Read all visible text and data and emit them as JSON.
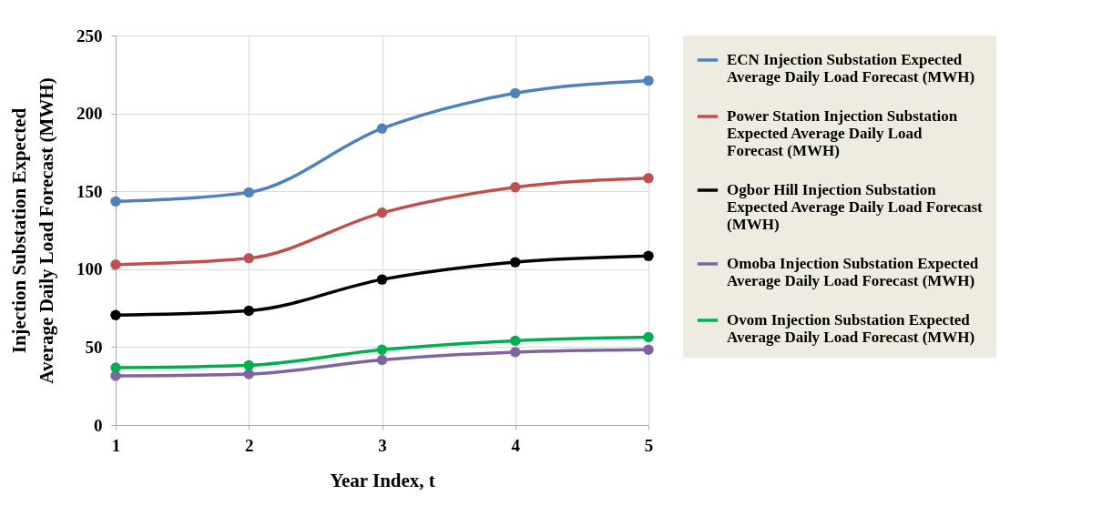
{
  "chart_data": {
    "type": "line",
    "xlabel": "Year Index, t",
    "ylabel": "Injection Substation Expected Average Daily Load Forecast (MWH)",
    "x": [
      1,
      2,
      3,
      4,
      5
    ],
    "xlim": [
      1,
      5
    ],
    "xticks": [
      1,
      2,
      3,
      4,
      5
    ],
    "ylim": [
      0,
      250
    ],
    "yticks": [
      0,
      50,
      100,
      150,
      200,
      250
    ],
    "grid": true,
    "legend": "right",
    "marker": "circle",
    "line_style": "solid",
    "series": [
      {
        "name": "ECN Injection Substation Expected Average Daily Load Forecast (MWH)",
        "color": "#4f81bd",
        "values": [
          143.5,
          149.3,
          190.3,
          213,
          221
        ]
      },
      {
        "name": "Power Station Injection Substation Expected  Average Daily Load Forecast (MWH)",
        "color": "#c0504d",
        "values": [
          103,
          107,
          136.2,
          152.6,
          158.4
        ]
      },
      {
        "name": "Ogbor Hill Injection Substation Expected Average Daily Load Forecast (MWH)",
        "color": "#000000",
        "values": [
          70.5,
          73.3,
          93.4,
          104.5,
          108.5
        ]
      },
      {
        "name": "Omoba Injection Substation Expected Average Daily Load Forecast (MWH)",
        "color": "#8064a2",
        "values": [
          31.5,
          32.7,
          41.8,
          46.8,
          48.3
        ]
      },
      {
        "name": "Ovom Injection Substation Expected Average Daily Load Forecast (MWH)",
        "color": "#00b050",
        "values": [
          36.8,
          38.3,
          48.3,
          54.1,
          56.4
        ]
      }
    ]
  }
}
